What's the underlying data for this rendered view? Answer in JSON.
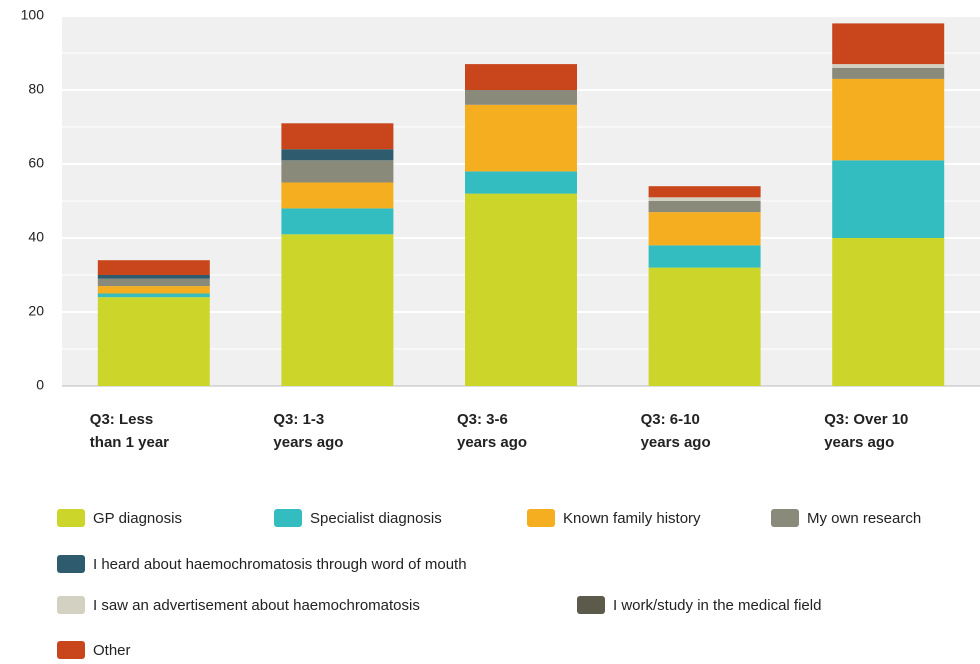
{
  "chart_data": {
    "type": "stacked_bar",
    "categories": [
      "Q3: Less\nthan 1 year",
      "Q3: 1-3\nyears ago",
      "Q3: 3-6\nyears ago",
      "Q3: 6-10\nyears ago",
      "Q3: Over 10\nyears ago"
    ],
    "series": [
      {
        "name": "GP diagnosis",
        "color": "#ccd62a",
        "values": [
          24,
          41,
          52,
          32,
          40
        ]
      },
      {
        "name": "Specialist diagnosis",
        "color": "#33bdc1",
        "values": [
          1,
          7,
          6,
          6,
          21
        ]
      },
      {
        "name": "Known family history",
        "color": "#f5ae20",
        "values": [
          2,
          7,
          18,
          9,
          22
        ]
      },
      {
        "name": "My own research",
        "color": "#8a8a7a",
        "values": [
          2,
          6,
          4,
          3,
          3
        ]
      },
      {
        "name": "I heard about haemochromatosis through word of mouth",
        "color": "#2e5c6e",
        "values": [
          1,
          3,
          0,
          0,
          0
        ]
      },
      {
        "name": "I saw an advertisement about haemochromatosis",
        "color": "#d3d1c2",
        "values": [
          0,
          0,
          0,
          1,
          1
        ]
      },
      {
        "name": "I work/study in the medical field",
        "color": "#5c5a4a",
        "values": [
          0,
          0,
          0,
          0,
          0
        ]
      },
      {
        "name": "Other",
        "color": "#c9461c",
        "values": [
          4,
          7,
          7,
          3,
          11
        ]
      }
    ],
    "ylim": [
      0,
      100
    ],
    "yticks": [
      0,
      20,
      40,
      60,
      80,
      100
    ],
    "minor_yticks": [
      10,
      30,
      50,
      70,
      90
    ],
    "grid": true
  }
}
